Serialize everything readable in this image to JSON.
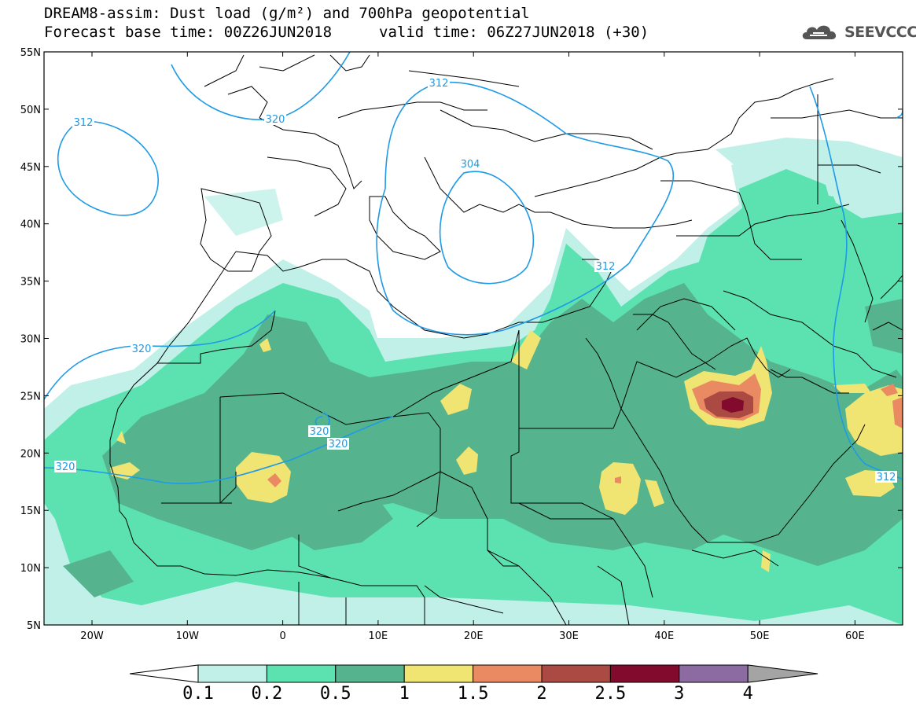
{
  "header": {
    "title": "DREAM8-assim: Dust load (g/m²) and 700hPa geopotential",
    "base_time": "Forecast base time: 00Z26JUN2018",
    "valid_time": "valid time: 06Z27JUN2018 (+30)"
  },
  "logo": {
    "text": "SEEVCCC",
    "icon": "cloud-icon"
  },
  "map": {
    "lat_labels": [
      "55N",
      "50N",
      "45N",
      "40N",
      "35N",
      "30N",
      "25N",
      "20N",
      "15N",
      "10N",
      "5N"
    ],
    "lon_labels": [
      "20W",
      "10W",
      "0",
      "10E",
      "20E",
      "30E",
      "40E",
      "50E",
      "60E"
    ],
    "contour_labels": [
      "312",
      "320",
      "312",
      "304",
      "312",
      "320",
      "320",
      "320",
      "320",
      "312"
    ]
  },
  "colorbar": {
    "labels": [
      "0.1",
      "0.2",
      "0.5",
      "1",
      "1.5",
      "2",
      "2.5",
      "3",
      "4"
    ],
    "colors": [
      "#c0f0e8",
      "#5ce2b0",
      "#55b48e",
      "#f0e472",
      "#ea8a62",
      "#aa4a42",
      "#820a2c",
      "#8c6aa2",
      "#a4a4a4"
    ]
  },
  "colors": {
    "dust_01": "#c0f0e8",
    "dust_02": "#5ce2b0",
    "dust_05": "#55b48e",
    "dust_1": "#f0e472",
    "dust_15": "#ea8a62",
    "dust_2": "#aa4a42",
    "dust_25": "#820a2c",
    "contour": "#1e9ae6"
  }
}
